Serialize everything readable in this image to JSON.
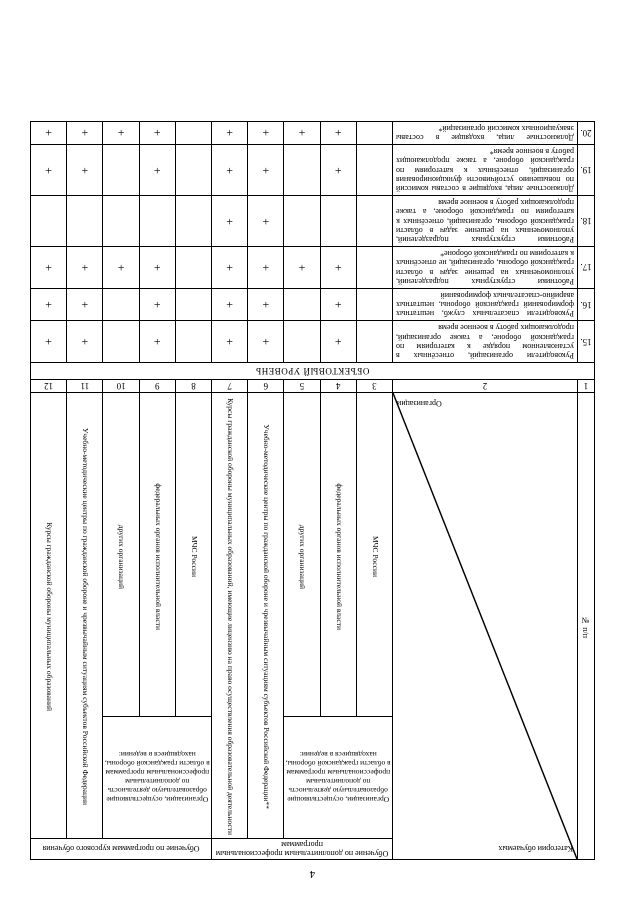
{
  "page_number": "4",
  "section_title": "ОБЪЕКТОВЫЙ УРОВЕНЬ",
  "diag_top": "Категории обучаемых",
  "diag_bottom": "Организации",
  "group1": "Обучение по дополнительным профессиональным программам",
  "group2": "Обучение по программам курсового обучения",
  "sub_a": "Организации, осуществляющие образовательную деятельность по дополнительным профессиональным программам в области гражданской обороны, находящиеся в ведении:",
  "sub_b": "Организации, осуществляющие образовательную деятельность по дополнительным профессиональным программам в области гражданской обороны, находящиеся в ведении:",
  "c3": "МЧС России",
  "c4": "федеральных органов исполнительной власти",
  "c5": "других организаций",
  "c6": "Учебно-методические центры по гражданской обороне и чрезвычайным ситуациям субъектов Российской Федерации**",
  "c7": "Курсы гражданской обороны муниципальных образований, имеющие лицензию на право осуществления образовательной деятельности",
  "c8": "МЧС России",
  "c9": "федеральных органов исполнительной власти",
  "c10": "других организаций",
  "c11": "Учебно-методические центры по гражданской обороне и чрезвычайным ситуациям субъектов Российской Федерации",
  "c12": "Курсы гражданской обороны муниципальных образований",
  "col_n": "№ п/п",
  "nums": [
    "1",
    "2",
    "3",
    "4",
    "5",
    "6",
    "7",
    "8",
    "9",
    "10",
    "11",
    "12"
  ],
  "rows": [
    {
      "n": "15.",
      "text": "Руководители организаций, отнесённых в установленном порядке к категориям по гражданской обороне, а также организаций, продолжающих работу в военное время",
      "marks": [
        "",
        "+",
        "",
        "+",
        "+",
        "",
        "+",
        "",
        "+",
        "+"
      ]
    },
    {
      "n": "16.",
      "text": "Руководители спасательных служб, нештатных формирований гражданской обороны, нештатных аварийно-спасательных формирований",
      "marks": [
        "",
        "+",
        "",
        "+",
        "+",
        "",
        "+",
        "",
        "+",
        "+"
      ]
    },
    {
      "n": "17.",
      "text": "Работники структурных подразделений, уполномоченных на решение задач в области гражданской обороны, организаций, не отнесённых к категориям по гражданской обороне*",
      "marks": [
        "",
        "+",
        "+",
        "+",
        "+",
        "",
        "+",
        "+",
        "+",
        "+"
      ]
    },
    {
      "n": "18.",
      "text": "Работники структурных подразделений, уполномоченных на решение задач в области гражданской обороны, организаций, отнесённых к категориям по гражданской обороне, а также продолжающих работу в военное время",
      "marks": [
        "",
        "",
        "",
        "+",
        "+",
        "",
        "",
        "",
        "",
        ""
      ]
    },
    {
      "n": "19.",
      "text": "Должностные лица, входящие в составы комиссий по повышению устойчивости функционирования организаций, отнесённых к категориям по гражданской обороне, а также продолжающих работу в военное время*",
      "marks": [
        "",
        "+",
        "",
        "+",
        "+",
        "",
        "+",
        "",
        "+",
        "+"
      ]
    },
    {
      "n": "20.",
      "text": "Должностные лица, входящие в составы эвакуационных комиссий организаций*",
      "marks": [
        "",
        "+",
        "+",
        "+",
        "+",
        "",
        "+",
        "+",
        "+",
        "+"
      ]
    }
  ]
}
